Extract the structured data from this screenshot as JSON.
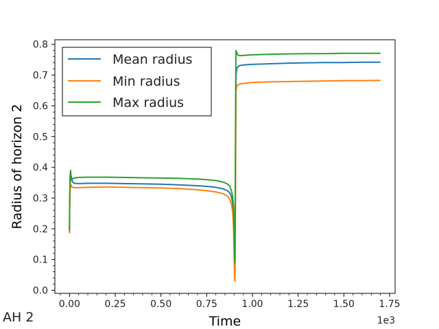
{
  "figure_label": "AH 2",
  "chart_data": {
    "type": "line",
    "title": "",
    "xlabel": "Time",
    "ylabel": "Radius of horizon 2",
    "x_scale_label": "1e3",
    "xlim": [
      -0.08,
      1.78
    ],
    "ylim": [
      -0.01,
      0.815
    ],
    "x_ticks": [
      0.0,
      0.25,
      0.5,
      0.75,
      1.0,
      1.25,
      1.5,
      1.75
    ],
    "x_tick_labels": [
      "0.00",
      "0.25",
      "0.50",
      "0.75",
      "1.00",
      "1.25",
      "1.50",
      "1.75"
    ],
    "y_ticks": [
      0.0,
      0.1,
      0.2,
      0.3,
      0.4,
      0.5,
      0.6,
      0.7,
      0.8
    ],
    "y_tick_labels": [
      "0.0",
      "0.1",
      "0.2",
      "0.3",
      "0.4",
      "0.5",
      "0.6",
      "0.7",
      "0.8"
    ],
    "grid": false,
    "legend_position": "top-left",
    "series": [
      {
        "name": "Mean radius",
        "color": "#1f77b4",
        "x": [
          0.0,
          0.001,
          0.003,
          0.006,
          0.01,
          0.015,
          0.025,
          0.05,
          0.1,
          0.2,
          0.3,
          0.4,
          0.5,
          0.6,
          0.7,
          0.75,
          0.8,
          0.84,
          0.86,
          0.875,
          0.885,
          0.892,
          0.897,
          0.9,
          0.902,
          0.904,
          0.906,
          0.908,
          0.91,
          0.915,
          0.92,
          0.93,
          0.95,
          1.0,
          1.1,
          1.2,
          1.3,
          1.4,
          1.5,
          1.6,
          1.7
        ],
        "y": [
          0.19,
          0.28,
          0.33,
          0.375,
          0.37,
          0.355,
          0.348,
          0.347,
          0.348,
          0.348,
          0.347,
          0.346,
          0.345,
          0.343,
          0.34,
          0.338,
          0.335,
          0.33,
          0.325,
          0.318,
          0.305,
          0.285,
          0.255,
          0.2,
          0.12,
          0.08,
          0.2,
          0.5,
          0.7,
          0.722,
          0.727,
          0.731,
          0.733,
          0.735,
          0.737,
          0.739,
          0.74,
          0.741,
          0.741,
          0.742,
          0.742
        ]
      },
      {
        "name": "Min radius",
        "color": "#ff7f0e",
        "x": [
          0.0,
          0.001,
          0.003,
          0.006,
          0.01,
          0.015,
          0.025,
          0.05,
          0.1,
          0.2,
          0.3,
          0.4,
          0.5,
          0.6,
          0.7,
          0.75,
          0.8,
          0.84,
          0.86,
          0.875,
          0.885,
          0.892,
          0.897,
          0.9,
          0.902,
          0.904,
          0.906,
          0.908,
          0.91,
          0.915,
          0.92,
          0.93,
          0.95,
          1.0,
          1.1,
          1.2,
          1.3,
          1.4,
          1.5,
          1.6,
          1.7
        ],
        "y": [
          0.185,
          0.26,
          0.32,
          0.345,
          0.34,
          0.335,
          0.334,
          0.334,
          0.335,
          0.336,
          0.335,
          0.334,
          0.333,
          0.331,
          0.327,
          0.324,
          0.32,
          0.314,
          0.308,
          0.298,
          0.282,
          0.255,
          0.2,
          0.12,
          0.04,
          0.03,
          0.1,
          0.4,
          0.65,
          0.664,
          0.668,
          0.671,
          0.673,
          0.676,
          0.678,
          0.679,
          0.68,
          0.681,
          0.682,
          0.682,
          0.683
        ]
      },
      {
        "name": "Max radius",
        "color": "#2ca02c",
        "x": [
          0.0,
          0.001,
          0.003,
          0.006,
          0.01,
          0.015,
          0.025,
          0.05,
          0.1,
          0.2,
          0.3,
          0.4,
          0.5,
          0.6,
          0.7,
          0.75,
          0.8,
          0.84,
          0.86,
          0.875,
          0.885,
          0.892,
          0.897,
          0.9,
          0.902,
          0.904,
          0.906,
          0.908,
          0.91,
          0.915,
          0.92,
          0.93,
          0.95,
          1.0,
          1.1,
          1.2,
          1.3,
          1.4,
          1.5,
          1.6,
          1.7
        ],
        "y": [
          0.195,
          0.3,
          0.37,
          0.39,
          0.36,
          0.362,
          0.365,
          0.367,
          0.368,
          0.368,
          0.367,
          0.366,
          0.365,
          0.364,
          0.362,
          0.36,
          0.357,
          0.352,
          0.347,
          0.34,
          0.325,
          0.305,
          0.27,
          0.2,
          0.12,
          0.09,
          0.3,
          0.6,
          0.78,
          0.772,
          0.765,
          0.763,
          0.764,
          0.766,
          0.768,
          0.769,
          0.77,
          0.77,
          0.771,
          0.771,
          0.771
        ]
      }
    ]
  }
}
